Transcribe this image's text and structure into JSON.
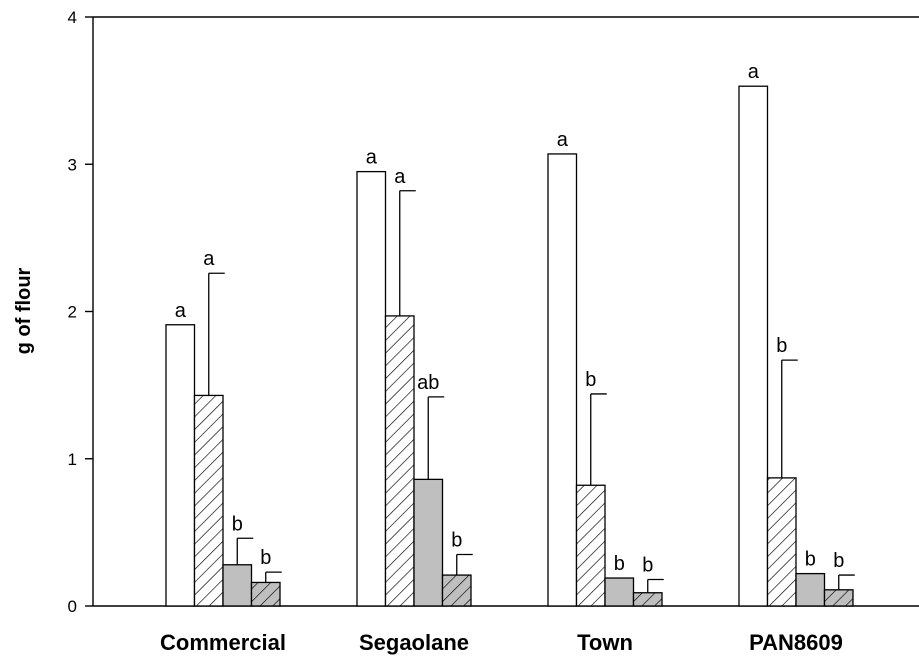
{
  "chart_data": {
    "type": "bar",
    "title": "",
    "xlabel": "",
    "ylabel": "g of flour",
    "ylim": [
      0,
      4
    ],
    "yticks": [
      "0",
      "1",
      "2",
      "3",
      "4"
    ],
    "grid": false,
    "legend": "none",
    "categories": [
      "Commercial",
      "Segaolane",
      "Town",
      "PAN8609"
    ],
    "series": [
      {
        "fill": "white",
        "values": [
          1.91,
          2.95,
          3.07,
          3.53
        ],
        "errors": [
          null,
          null,
          null,
          null
        ],
        "labels": [
          "a",
          "a",
          "a",
          "a"
        ]
      },
      {
        "fill": "hatched",
        "values": [
          1.43,
          1.97,
          0.82,
          0.87
        ],
        "errors": [
          2.26,
          2.82,
          1.44,
          1.67
        ],
        "labels": [
          "a",
          "a",
          "b",
          "b"
        ]
      },
      {
        "fill": "gray",
        "values": [
          0.28,
          0.86,
          0.19,
          0.22
        ],
        "errors": [
          0.46,
          1.42,
          null,
          null
        ],
        "labels": [
          "b",
          "ab",
          "b",
          "b"
        ]
      },
      {
        "fill": "gray-hatched",
        "values": [
          0.16,
          0.21,
          0.09,
          0.11
        ],
        "errors": [
          0.23,
          0.35,
          0.18,
          0.21
        ],
        "labels": [
          "b",
          "b",
          "b",
          "b"
        ]
      }
    ],
    "colors": {
      "white": "#ffffff",
      "gray": "#bfbfbf",
      "axis": "#000000"
    }
  }
}
